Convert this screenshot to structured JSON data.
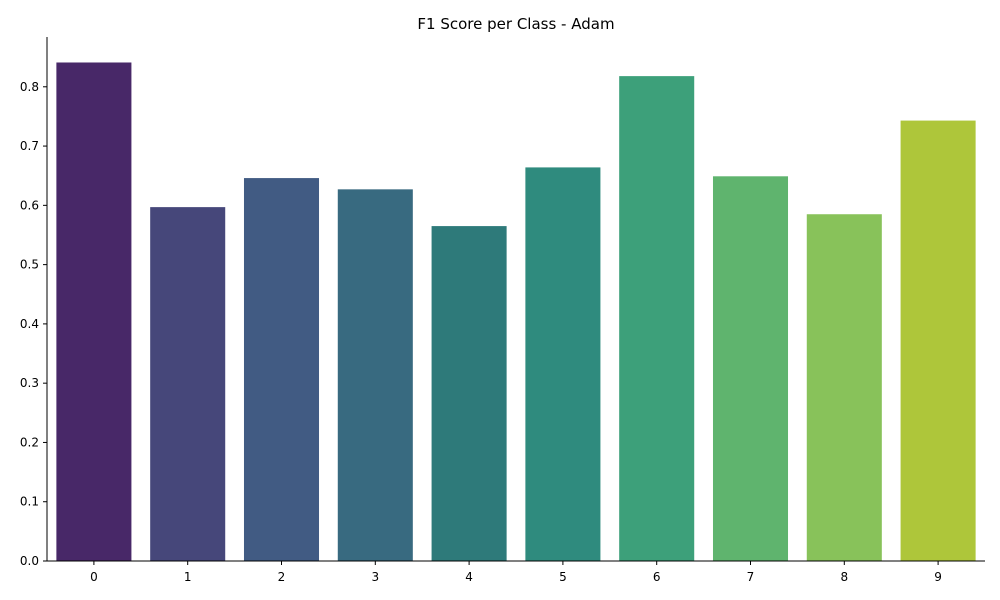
{
  "chart_data": {
    "type": "bar",
    "title": "F1 Score per Class - Adam",
    "xlabel": "",
    "ylabel": "",
    "categories": [
      "0",
      "1",
      "2",
      "3",
      "4",
      "5",
      "6",
      "7",
      "8",
      "9"
    ],
    "values": [
      0.841,
      0.597,
      0.646,
      0.627,
      0.565,
      0.664,
      0.818,
      0.649,
      0.585,
      0.743
    ],
    "colors": [
      "#482868",
      "#46477a",
      "#415b83",
      "#386a80",
      "#2e7a7a",
      "#2f8b7e",
      "#3da07a",
      "#5fb46e",
      "#88c25a",
      "#aec63a"
    ],
    "ylim": [
      0,
      0.884
    ],
    "yticks": [
      "0.0",
      "0.1",
      "0.2",
      "0.3",
      "0.4",
      "0.5",
      "0.6",
      "0.7",
      "0.8"
    ],
    "grid": false,
    "legend": "none"
  }
}
